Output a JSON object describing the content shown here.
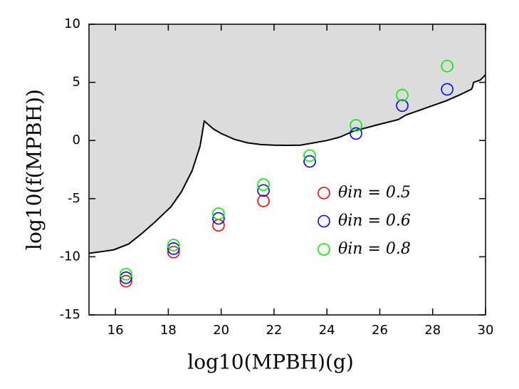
{
  "chart_data": {
    "type": "scatter",
    "x_label": "log10(MPBH)(g)",
    "y_label": "log10(f(MPBH))",
    "xlim": [
      15,
      30
    ],
    "ylim": [
      -15,
      10
    ],
    "xticks": [
      16,
      18,
      20,
      22,
      24,
      26,
      28,
      30
    ],
    "yticks": [
      -15,
      -10,
      -5,
      0,
      5,
      10
    ],
    "legend": "right",
    "boundary": {
      "color": "#000000",
      "fill": "#dcdcdc",
      "x": [
        15,
        15.5,
        15.94,
        16.5,
        17,
        17.5,
        18.1,
        18.5,
        18.9,
        19.2,
        19.36,
        19.5,
        19.7,
        20,
        20.5,
        21,
        21.5,
        22,
        22.5,
        23,
        23.5,
        24,
        24.5,
        25,
        25.5,
        26,
        26.7,
        27,
        27.5,
        28,
        28.5,
        29,
        29.46,
        29.5,
        29.55,
        29.8,
        30
      ],
      "y": [
        -9.7,
        -9.55,
        -9.4,
        -8.9,
        -8,
        -7,
        -5.7,
        -4.4,
        -2.6,
        -0.5,
        1.67,
        1.4,
        1.0,
        0.6,
        0.1,
        -0.2,
        -0.35,
        -0.4,
        -0.42,
        -0.4,
        -0.2,
        0,
        0.3,
        0.8,
        1.1,
        1.4,
        1.8,
        2.2,
        2.6,
        3.0,
        3.4,
        3.9,
        4.4,
        4.55,
        5.0,
        5.2,
        5.65
      ]
    },
    "series": [
      {
        "name": "θin = 0.5",
        "color": "#ff0000",
        "x": [
          16.4,
          18.2,
          19.9,
          21.6
        ],
        "values": [
          -12.1,
          -9.6,
          -7.3,
          -5.2
        ]
      },
      {
        "name": "θin = 0.6",
        "color": "#0000ff",
        "x": [
          16.4,
          18.2,
          19.9,
          21.6,
          23.35,
          25.1,
          26.85,
          28.55
        ],
        "values": [
          -11.8,
          -9.3,
          -6.7,
          -4.3,
          -1.8,
          0.6,
          3.0,
          4.4
        ]
      },
      {
        "name": "θin = 0.8",
        "color": "#00ee00",
        "x": [
          16.4,
          18.2,
          19.9,
          21.6,
          23.35,
          25.1,
          26.85,
          28.55
        ],
        "values": [
          -11.5,
          -9.0,
          -6.3,
          -3.8,
          -1.3,
          1.3,
          3.9,
          6.4
        ]
      }
    ]
  }
}
